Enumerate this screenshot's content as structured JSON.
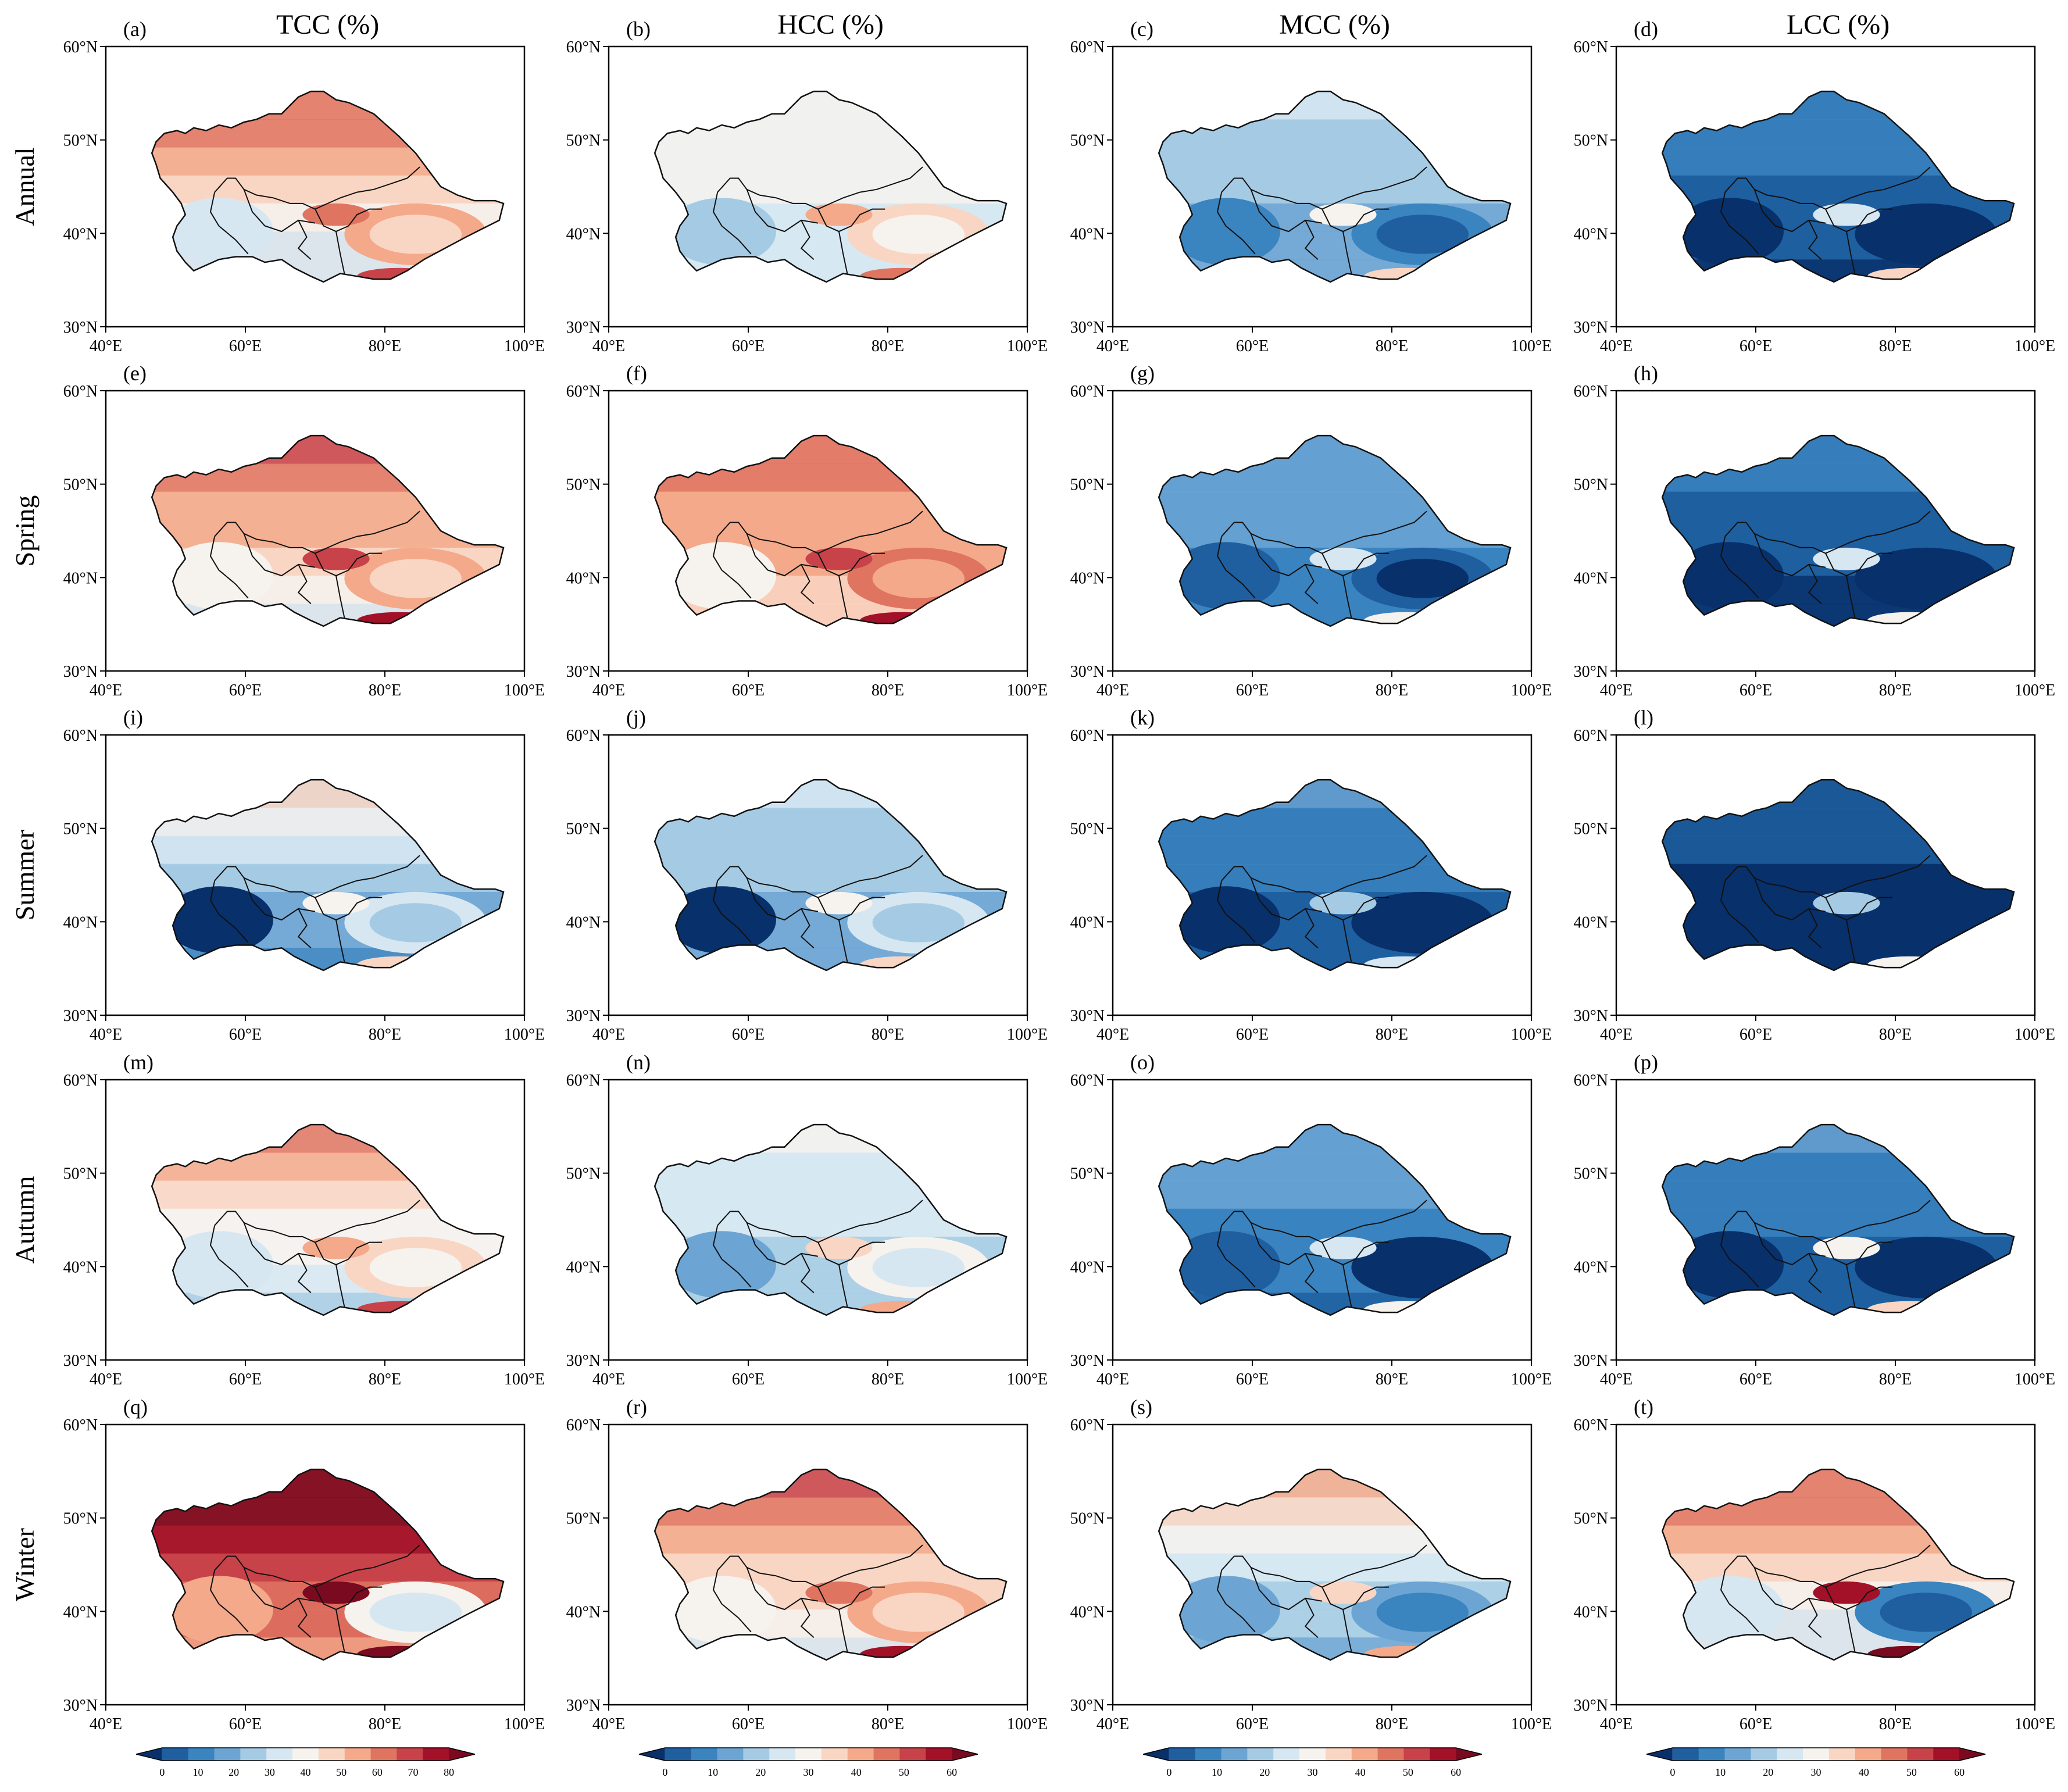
{
  "columns": [
    {
      "title": "TCC (%)",
      "colorbar": {
        "ticks": [
          "0",
          "10",
          "20",
          "30",
          "40",
          "50",
          "60",
          "70",
          "80"
        ]
      }
    },
    {
      "title": "HCC (%)",
      "colorbar": {
        "ticks": [
          "0",
          "10",
          "20",
          "30",
          "40",
          "50",
          "60"
        ]
      }
    },
    {
      "title": "MCC (%)",
      "colorbar": {
        "ticks": [
          "0",
          "10",
          "20",
          "30",
          "40",
          "50",
          "60"
        ]
      }
    },
    {
      "title": "LCC (%)",
      "colorbar": {
        "ticks": [
          "0",
          "10",
          "20",
          "30",
          "40",
          "50",
          "60"
        ]
      }
    }
  ],
  "rows": [
    "Annual",
    "Spring",
    "Summer",
    "Autumn",
    "Winter"
  ],
  "panel_letters": [
    "(a)",
    "(b)",
    "(c)",
    "(d)",
    "(e)",
    "(f)",
    "(g)",
    "(h)",
    "(i)",
    "(j)",
    "(k)",
    "(l)",
    "(m)",
    "(n)",
    "(o)",
    "(p)",
    "(q)",
    "(r)",
    "(s)",
    "(t)"
  ],
  "axes": {
    "lon_labels": [
      "40°E",
      "60°E",
      "80°E",
      "100°E"
    ],
    "lat_labels": [
      "30°N",
      "40°N",
      "50°N",
      "60°N"
    ],
    "lon_range": [
      40,
      100
    ],
    "lat_range": [
      30,
      60
    ]
  },
  "palette": [
    "#08306b",
    "#1f5fa0",
    "#3a84c0",
    "#6ca5d3",
    "#a5cbe4",
    "#d6e7f2",
    "#f6f2ee",
    "#f9d6c3",
    "#f3a98a",
    "#df7461",
    "#c8424a",
    "#a21128",
    "#7a0a1f"
  ],
  "fields": [
    [
      0.55,
      0.45,
      0.3,
      0.1
    ],
    [
      0.6,
      0.65,
      0.2,
      0.08
    ],
    [
      0.32,
      0.3,
      0.12,
      0.02
    ],
    [
      0.5,
      0.38,
      0.18,
      0.12
    ],
    [
      0.82,
      0.58,
      0.4,
      0.55
    ]
  ]
}
